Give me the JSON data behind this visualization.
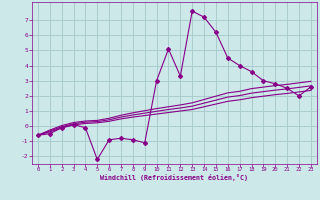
{
  "xlabel": "Windchill (Refroidissement éolien,°C)",
  "bg_color": "#cce8e8",
  "grid_color": "#aacccc",
  "line_color": "#880088",
  "x_data": [
    0,
    1,
    2,
    3,
    4,
    5,
    6,
    7,
    8,
    9,
    10,
    11,
    12,
    13,
    14,
    15,
    16,
    17,
    18,
    19,
    20,
    21,
    22,
    23
  ],
  "y_main": [
    -0.6,
    -0.5,
    -0.1,
    0.1,
    -0.1,
    -2.2,
    -0.9,
    -0.8,
    -0.9,
    -1.1,
    3.0,
    5.1,
    3.3,
    7.6,
    7.2,
    6.2,
    4.5,
    4.0,
    3.6,
    3.0,
    2.8,
    2.5,
    2.0,
    2.6
  ],
  "y_smooth1": [
    -0.6,
    -0.38,
    -0.12,
    0.08,
    0.18,
    0.22,
    0.32,
    0.48,
    0.6,
    0.7,
    0.8,
    0.9,
    1.0,
    1.1,
    1.28,
    1.46,
    1.64,
    1.74,
    1.88,
    1.98,
    2.08,
    2.16,
    2.26,
    2.36
  ],
  "y_smooth2": [
    -0.6,
    -0.32,
    -0.04,
    0.16,
    0.26,
    0.3,
    0.42,
    0.6,
    0.74,
    0.86,
    0.98,
    1.1,
    1.2,
    1.32,
    1.52,
    1.72,
    1.92,
    2.02,
    2.18,
    2.28,
    2.38,
    2.46,
    2.56,
    2.66
  ],
  "y_smooth3": [
    -0.6,
    -0.26,
    0.04,
    0.24,
    0.34,
    0.38,
    0.52,
    0.72,
    0.88,
    1.02,
    1.16,
    1.28,
    1.4,
    1.54,
    1.76,
    1.98,
    2.2,
    2.3,
    2.48,
    2.58,
    2.68,
    2.76,
    2.86,
    2.96
  ],
  "ylim": [
    -2.5,
    8.2
  ],
  "yticks": [
    -2,
    -1,
    0,
    1,
    2,
    3,
    4,
    5,
    6,
    7
  ],
  "xlim": [
    -0.5,
    23.5
  ],
  "xticks": [
    0,
    1,
    2,
    3,
    4,
    5,
    6,
    7,
    8,
    9,
    10,
    11,
    12,
    13,
    14,
    15,
    16,
    17,
    18,
    19,
    20,
    21,
    22,
    23
  ]
}
